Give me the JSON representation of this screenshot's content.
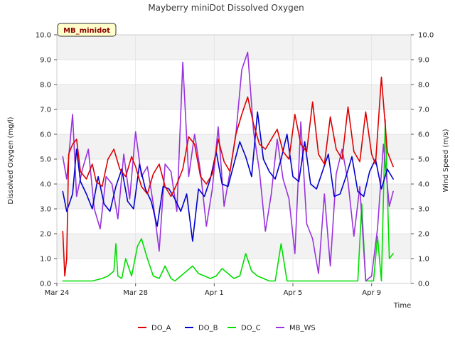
{
  "chart_data": {
    "type": "line",
    "title": "Mayberry miniDot Dissolved Oxygen",
    "xlabel": "Time",
    "ylabel": "Dissolved Oxygen (mg/l)",
    "y2label": "Wind Speed (m/s)",
    "station_label": "MB_minidot",
    "x_axis": {
      "start": "Mar 24",
      "end": "Apr 11",
      "ticks": [
        {
          "label": "Mar 24",
          "day": 0
        },
        {
          "label": "Mar 28",
          "day": 4
        },
        {
          "label": "Apr 1",
          "day": 8
        },
        {
          "label": "Apr 5",
          "day": 12
        },
        {
          "label": "Apr 9",
          "day": 16
        }
      ]
    },
    "ylim": [
      0,
      10
    ],
    "y2lim": [
      0,
      10
    ],
    "yticks": [
      "0.0",
      "1.0",
      "2.0",
      "3.0",
      "4.0",
      "5.0",
      "6.0",
      "7.0",
      "8.0",
      "9.0",
      "10.0"
    ],
    "y2ticks": [
      "0.0",
      "1.0",
      "2.0",
      "3.0",
      "4.0",
      "5.0",
      "6.0",
      "7.0",
      "8.0",
      "9.0",
      "10.0"
    ],
    "grid": true,
    "legend_position": "bottom-center",
    "series": [
      {
        "name": "DO_A",
        "color": "#dd0000",
        "x": [
          0.3,
          0.4,
          0.5,
          0.6,
          0.8,
          1.0,
          1.2,
          1.5,
          1.8,
          2.0,
          2.3,
          2.6,
          2.9,
          3.2,
          3.5,
          3.8,
          4.0,
          4.3,
          4.6,
          4.9,
          5.2,
          5.5,
          5.8,
          6.1,
          6.4,
          6.7,
          7.0,
          7.3,
          7.6,
          7.9,
          8.2,
          8.5,
          8.8,
          9.1,
          9.4,
          9.7,
          10.0,
          10.3,
          10.6,
          10.9,
          11.2,
          11.5,
          11.8,
          12.1,
          12.4,
          12.7,
          13.0,
          13.3,
          13.6,
          13.9,
          14.2,
          14.5,
          14.8,
          15.1,
          15.4,
          15.7,
          16.0,
          16.2,
          16.5,
          16.8,
          17.0,
          17.1
        ],
        "y": [
          2.1,
          0.3,
          1.0,
          5.2,
          5.6,
          5.8,
          4.5,
          4.2,
          4.8,
          4.1,
          3.9,
          5.0,
          5.4,
          4.6,
          4.3,
          5.1,
          4.7,
          3.9,
          3.6,
          4.4,
          4.8,
          3.9,
          3.5,
          4.0,
          4.6,
          5.9,
          5.6,
          4.3,
          4.0,
          4.4,
          5.8,
          4.9,
          4.5,
          6.0,
          6.8,
          7.5,
          6.4,
          5.6,
          5.4,
          5.8,
          6.2,
          5.3,
          5.0,
          6.8,
          5.6,
          5.3,
          7.3,
          5.2,
          4.8,
          6.7,
          5.4,
          5.0,
          7.1,
          5.3,
          4.9,
          6.9,
          5.2,
          4.8,
          8.3,
          5.3,
          4.9,
          4.7
        ]
      },
      {
        "name": "DO_B",
        "color": "#0000cc",
        "x": [
          0.3,
          0.5,
          0.8,
          1.0,
          1.2,
          1.5,
          1.8,
          2.1,
          2.4,
          2.7,
          3.0,
          3.3,
          3.6,
          3.9,
          4.2,
          4.5,
          4.8,
          5.1,
          5.4,
          5.7,
          6.0,
          6.3,
          6.6,
          6.9,
          7.2,
          7.5,
          7.8,
          8.1,
          8.4,
          8.7,
          9.0,
          9.3,
          9.6,
          9.9,
          10.2,
          10.5,
          10.8,
          11.1,
          11.4,
          11.7,
          12.0,
          12.3,
          12.6,
          12.9,
          13.2,
          13.5,
          13.8,
          14.1,
          14.4,
          14.7,
          15.0,
          15.3,
          15.6,
          15.9,
          16.2,
          16.5,
          16.8,
          17.1
        ],
        "y": [
          3.7,
          2.9,
          3.6,
          5.4,
          4.1,
          3.6,
          3.0,
          4.3,
          3.2,
          2.9,
          3.9,
          4.6,
          3.3,
          3.0,
          4.8,
          3.8,
          3.3,
          2.3,
          3.9,
          3.8,
          3.4,
          2.9,
          3.6,
          1.7,
          3.8,
          3.5,
          4.2,
          5.3,
          4.0,
          3.9,
          4.8,
          5.7,
          5.1,
          4.3,
          6.9,
          5.0,
          4.5,
          4.2,
          5.0,
          6.0,
          4.3,
          4.1,
          5.7,
          4.0,
          3.8,
          4.5,
          5.2,
          3.5,
          3.6,
          4.3,
          5.1,
          3.7,
          3.5,
          4.5,
          5.0,
          3.8,
          4.6,
          4.2
        ]
      },
      {
        "name": "DO_C",
        "color": "#00dd00",
        "x": [
          0.3,
          0.8,
          1.3,
          1.8,
          2.3,
          2.6,
          2.9,
          3.0,
          3.1,
          3.3,
          3.5,
          3.8,
          4.1,
          4.3,
          4.6,
          4.9,
          5.2,
          5.5,
          5.8,
          6.0,
          6.3,
          6.6,
          6.9,
          7.2,
          7.5,
          7.8,
          8.1,
          8.4,
          8.7,
          9.0,
          9.3,
          9.6,
          9.9,
          10.2,
          10.5,
          10.8,
          11.1,
          11.4,
          11.7,
          12.0,
          12.3,
          12.6,
          12.9,
          13.2,
          13.5,
          13.8,
          14.1,
          14.4,
          14.7,
          15.0,
          15.3,
          15.5,
          15.7,
          15.9,
          16.1,
          16.3,
          16.5,
          16.7,
          16.9,
          17.1
        ],
        "y": [
          0.1,
          0.1,
          0.1,
          0.1,
          0.2,
          0.3,
          0.5,
          1.6,
          0.3,
          0.2,
          1.0,
          0.3,
          1.5,
          1.8,
          1.0,
          0.3,
          0.2,
          0.7,
          0.2,
          0.1,
          0.3,
          0.5,
          0.7,
          0.4,
          0.3,
          0.2,
          0.3,
          0.6,
          0.4,
          0.2,
          0.3,
          1.2,
          0.5,
          0.3,
          0.2,
          0.1,
          0.1,
          1.6,
          0.1,
          0.1,
          0.1,
          0.1,
          0.1,
          0.1,
          0.1,
          0.1,
          0.1,
          0.1,
          0.1,
          0.1,
          0.1,
          3.2,
          0.1,
          0.1,
          0.1,
          1.9,
          0.1,
          6.6,
          1.0,
          1.2
        ]
      },
      {
        "name": "MB_WS",
        "color": "#9933dd",
        "x": [
          0.3,
          0.5,
          0.8,
          1.0,
          1.3,
          1.6,
          1.9,
          2.2,
          2.5,
          2.8,
          3.1,
          3.4,
          3.7,
          4.0,
          4.3,
          4.6,
          4.9,
          5.2,
          5.5,
          5.8,
          6.1,
          6.4,
          6.7,
          7.0,
          7.3,
          7.6,
          7.9,
          8.2,
          8.5,
          8.8,
          9.1,
          9.4,
          9.7,
          10.0,
          10.3,
          10.6,
          10.9,
          11.2,
          11.5,
          11.8,
          12.1,
          12.4,
          12.7,
          13.0,
          13.3,
          13.6,
          13.9,
          14.2,
          14.5,
          14.8,
          15.1,
          15.4,
          15.7,
          16.0,
          16.3,
          16.6,
          16.9,
          17.1
        ],
        "y": [
          5.1,
          4.2,
          6.8,
          3.5,
          4.6,
          5.4,
          3.0,
          2.2,
          4.3,
          4.0,
          2.6,
          5.2,
          3.4,
          6.1,
          4.3,
          4.7,
          3.2,
          1.3,
          4.8,
          4.5,
          2.9,
          8.9,
          4.3,
          6.0,
          4.5,
          2.3,
          3.8,
          6.3,
          3.1,
          4.5,
          6.0,
          8.6,
          9.3,
          6.1,
          4.5,
          2.1,
          3.6,
          5.8,
          4.2,
          3.4,
          1.2,
          6.5,
          2.4,
          1.8,
          0.4,
          3.6,
          0.7,
          4.4,
          5.4,
          4.1,
          1.9,
          3.9,
          0.1,
          0.3,
          2.2,
          5.6,
          3.1,
          3.7
        ]
      }
    ]
  }
}
